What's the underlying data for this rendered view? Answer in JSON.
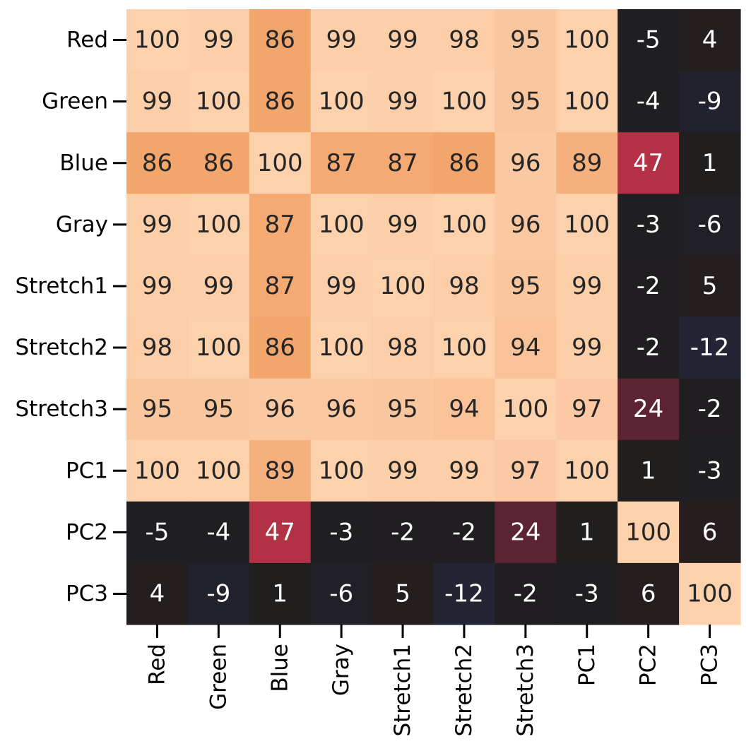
{
  "chart_data": {
    "type": "heatmap",
    "title": "",
    "xlabel": "",
    "ylabel": "",
    "rows": [
      "Red",
      "Green",
      "Blue",
      "Gray",
      "Stretch1",
      "Stretch2",
      "Stretch3",
      "PC1",
      "PC2",
      "PC3"
    ],
    "columns": [
      "Red",
      "Green",
      "Blue",
      "Gray",
      "Stretch1",
      "Stretch2",
      "Stretch3",
      "PC1",
      "PC2",
      "PC3"
    ],
    "values": [
      [
        100,
        99,
        86,
        99,
        99,
        98,
        95,
        100,
        -5,
        4
      ],
      [
        99,
        100,
        86,
        100,
        99,
        100,
        95,
        100,
        -4,
        -9
      ],
      [
        86,
        86,
        100,
        87,
        87,
        86,
        96,
        89,
        47,
        1
      ],
      [
        99,
        100,
        87,
        100,
        99,
        100,
        96,
        100,
        -3,
        -6
      ],
      [
        99,
        99,
        87,
        99,
        100,
        98,
        95,
        99,
        -2,
        5
      ],
      [
        98,
        100,
        86,
        100,
        98,
        100,
        94,
        99,
        -2,
        -12
      ],
      [
        95,
        95,
        96,
        96,
        95,
        94,
        100,
        97,
        24,
        -2
      ],
      [
        100,
        100,
        89,
        100,
        99,
        99,
        97,
        100,
        1,
        -3
      ],
      [
        -5,
        -4,
        47,
        -3,
        -2,
        -2,
        24,
        1,
        100,
        6
      ],
      [
        4,
        -9,
        1,
        -6,
        5,
        -12,
        -2,
        -3,
        6,
        100
      ]
    ],
    "color_scale": "diverging-dark-center",
    "colorbar": false,
    "annotations": true,
    "grid": false
  }
}
